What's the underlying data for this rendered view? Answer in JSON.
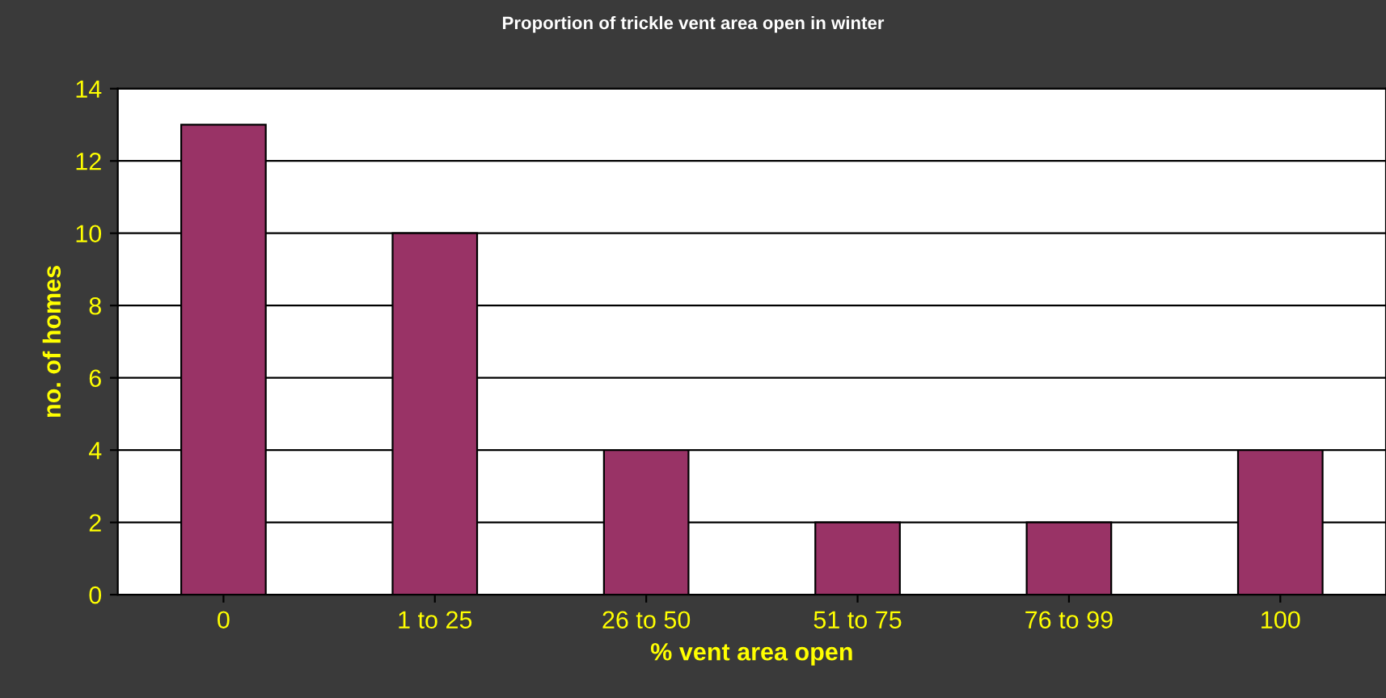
{
  "chart_data": {
    "type": "bar",
    "title": "Proportion of trickle vent area open in winter",
    "xlabel": "% vent area open",
    "ylabel": "no. of homes",
    "categories": [
      "0",
      "1 to 25",
      "26 to 50",
      "51 to 75",
      "76 to 99",
      "100"
    ],
    "values": [
      13,
      10,
      4,
      2,
      2,
      4
    ],
    "color": "#993366",
    "ylim": [
      0,
      14
    ],
    "yticks": [
      0,
      2,
      4,
      6,
      8,
      10,
      12,
      14
    ],
    "grid": "y"
  }
}
